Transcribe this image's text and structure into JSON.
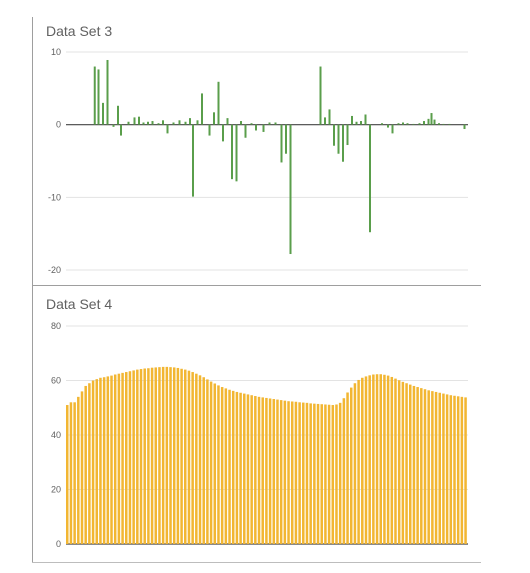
{
  "chart_data": [
    {
      "type": "bar",
      "title": "Data Set 3",
      "ylim": [
        -20,
        10
      ],
      "yticks": [
        10,
        0,
        -10,
        -20
      ],
      "grid": true,
      "color": "#5a9e4b",
      "bars": [
        {
          "x": 0.5,
          "y": 8
        },
        {
          "x": 1.0,
          "y": 7.6
        },
        {
          "x": 1.6,
          "y": 3
        },
        {
          "x": 2.2,
          "y": 8.9
        },
        {
          "x": 3.0,
          "y": -0.3
        },
        {
          "x": 3.6,
          "y": 2.6
        },
        {
          "x": 4.0,
          "y": -1.5
        },
        {
          "x": 5.0,
          "y": 0.4
        },
        {
          "x": 5.8,
          "y": 1
        },
        {
          "x": 6.4,
          "y": 1.1
        },
        {
          "x": 7.0,
          "y": 0.3
        },
        {
          "x": 7.6,
          "y": 0.4
        },
        {
          "x": 8.2,
          "y": 0.5
        },
        {
          "x": 9.0,
          "y": 0.2
        },
        {
          "x": 9.6,
          "y": 0.6
        },
        {
          "x": 10.2,
          "y": -1.2
        },
        {
          "x": 11.0,
          "y": 0.3
        },
        {
          "x": 11.8,
          "y": 0.6
        },
        {
          "x": 12.6,
          "y": 0.4
        },
        {
          "x": 13.2,
          "y": 0.9
        },
        {
          "x": 13.6,
          "y": -9.9
        },
        {
          "x": 14.2,
          "y": 0.6
        },
        {
          "x": 14.8,
          "y": 4.3
        },
        {
          "x": 15.8,
          "y": -1.5
        },
        {
          "x": 16.4,
          "y": 1.7
        },
        {
          "x": 17.0,
          "y": 5.9
        },
        {
          "x": 17.6,
          "y": -2.3
        },
        {
          "x": 18.2,
          "y": 0.9
        },
        {
          "x": 18.8,
          "y": -7.5
        },
        {
          "x": 19.4,
          "y": -7.8
        },
        {
          "x": 20.0,
          "y": 0.5
        },
        {
          "x": 20.6,
          "y": -1.8
        },
        {
          "x": 21.4,
          "y": 0.2
        },
        {
          "x": 22.0,
          "y": -0.8
        },
        {
          "x": 23.0,
          "y": -1
        },
        {
          "x": 23.8,
          "y": 0.3
        },
        {
          "x": 24.6,
          "y": 0.3
        },
        {
          "x": 25.4,
          "y": -5.2
        },
        {
          "x": 26.0,
          "y": -4
        },
        {
          "x": 26.6,
          "y": -17.8
        },
        {
          "x": 30.6,
          "y": 8
        },
        {
          "x": 31.2,
          "y": 1
        },
        {
          "x": 31.8,
          "y": 2.1
        },
        {
          "x": 32.4,
          "y": -2.9
        },
        {
          "x": 33.0,
          "y": -4
        },
        {
          "x": 33.6,
          "y": -5.1
        },
        {
          "x": 34.2,
          "y": -2.8
        },
        {
          "x": 34.8,
          "y": 1.2
        },
        {
          "x": 35.4,
          "y": 0.4
        },
        {
          "x": 36.0,
          "y": 0.5
        },
        {
          "x": 36.6,
          "y": 1.4
        },
        {
          "x": 37.2,
          "y": -14.8
        },
        {
          "x": 38.8,
          "y": 0.2
        },
        {
          "x": 39.6,
          "y": -0.4
        },
        {
          "x": 40.2,
          "y": -1.2
        },
        {
          "x": 41.0,
          "y": 0.2
        },
        {
          "x": 41.6,
          "y": 0.3
        },
        {
          "x": 42.2,
          "y": 0.2
        },
        {
          "x": 43.0,
          "y": 0.1
        },
        {
          "x": 43.8,
          "y": 0.2
        },
        {
          "x": 44.4,
          "y": 0.5
        },
        {
          "x": 45.0,
          "y": 0.8
        },
        {
          "x": 45.4,
          "y": 1.6
        },
        {
          "x": 45.8,
          "y": 0.7
        },
        {
          "x": 46.4,
          "y": 0.2
        },
        {
          "x": 47.0,
          "y": 0.1
        },
        {
          "x": 47.8,
          "y": 0.1
        },
        {
          "x": 49.8,
          "y": -0.6
        }
      ]
    },
    {
      "type": "bar",
      "title": "Data Set 4",
      "ylim": [
        0,
        80
      ],
      "yticks": [
        80,
        60,
        40,
        20,
        0
      ],
      "grid": true,
      "color": "#f2b632",
      "values": [
        51,
        52,
        52,
        54,
        56,
        58,
        59,
        60,
        60.5,
        61,
        61.2,
        61.5,
        61.8,
        62.2,
        62.5,
        62.8,
        63.1,
        63.4,
        63.7,
        64,
        64.2,
        64.4,
        64.5,
        64.7,
        64.8,
        64.9,
        65,
        65,
        64.9,
        64.8,
        64.6,
        64.3,
        64,
        63.6,
        63.1,
        62.5,
        61.9,
        61.2,
        60.4,
        59.6,
        58.9,
        58.2,
        57.6,
        57.1,
        56.6,
        56.2,
        55.8,
        55.5,
        55.2,
        54.9,
        54.6,
        54.3,
        54,
        53.8,
        53.6,
        53.4,
        53.2,
        53,
        52.8,
        52.6,
        52.4,
        52.3,
        52.2,
        52,
        51.9,
        51.8,
        51.6,
        51.5,
        51.4,
        51.3,
        51.2,
        51.1,
        51,
        51.2,
        51.8,
        53.5,
        55.6,
        57.4,
        59,
        60.2,
        61,
        61.5,
        61.9,
        62.2,
        62.3,
        62.3,
        62.1,
        61.8,
        61.3,
        60.7,
        60.1,
        59.5,
        59,
        58.5,
        58,
        57.6,
        57.2,
        56.8,
        56.4,
        56.1,
        55.8,
        55.5,
        55.2,
        54.9,
        54.6,
        54.4,
        54.2,
        54,
        53.8
      ]
    }
  ]
}
